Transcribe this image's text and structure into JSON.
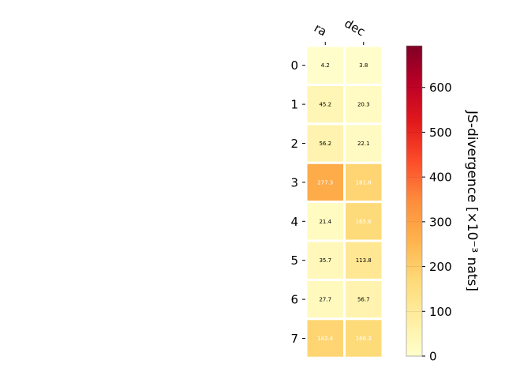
{
  "chart_data": {
    "type": "heatmap",
    "columns": [
      "ra",
      "dec"
    ],
    "rows": [
      "0",
      "1",
      "2",
      "3",
      "4",
      "5",
      "6",
      "7"
    ],
    "values": [
      [
        4.2,
        3.8
      ],
      [
        45.2,
        20.3
      ],
      [
        56.2,
        22.1
      ],
      [
        277.3,
        181.8
      ],
      [
        21.4,
        165.6
      ],
      [
        35.7,
        113.8
      ],
      [
        27.7,
        56.7
      ],
      [
        182.4,
        166.3
      ]
    ],
    "value_labels": [
      [
        "4.2",
        "3.8"
      ],
      [
        "45.2",
        "20.3"
      ],
      [
        "56.2",
        "22.1"
      ],
      [
        "277.3",
        "181.8"
      ],
      [
        "21.4",
        "165.6"
      ],
      [
        "35.7",
        "113.8"
      ],
      [
        "27.7",
        "56.7"
      ],
      [
        "182.4",
        "166.3"
      ]
    ],
    "colorbar": {
      "label": "JS-divergence [×10⁻³ nats]",
      "range": [
        0,
        693
      ],
      "ticks": [
        0,
        100,
        200,
        300,
        400,
        500,
        600
      ],
      "tick_labels": [
        "0",
        "100",
        "200",
        "300",
        "400",
        "500",
        "600"
      ],
      "colormap": "YlOrRd"
    }
  }
}
